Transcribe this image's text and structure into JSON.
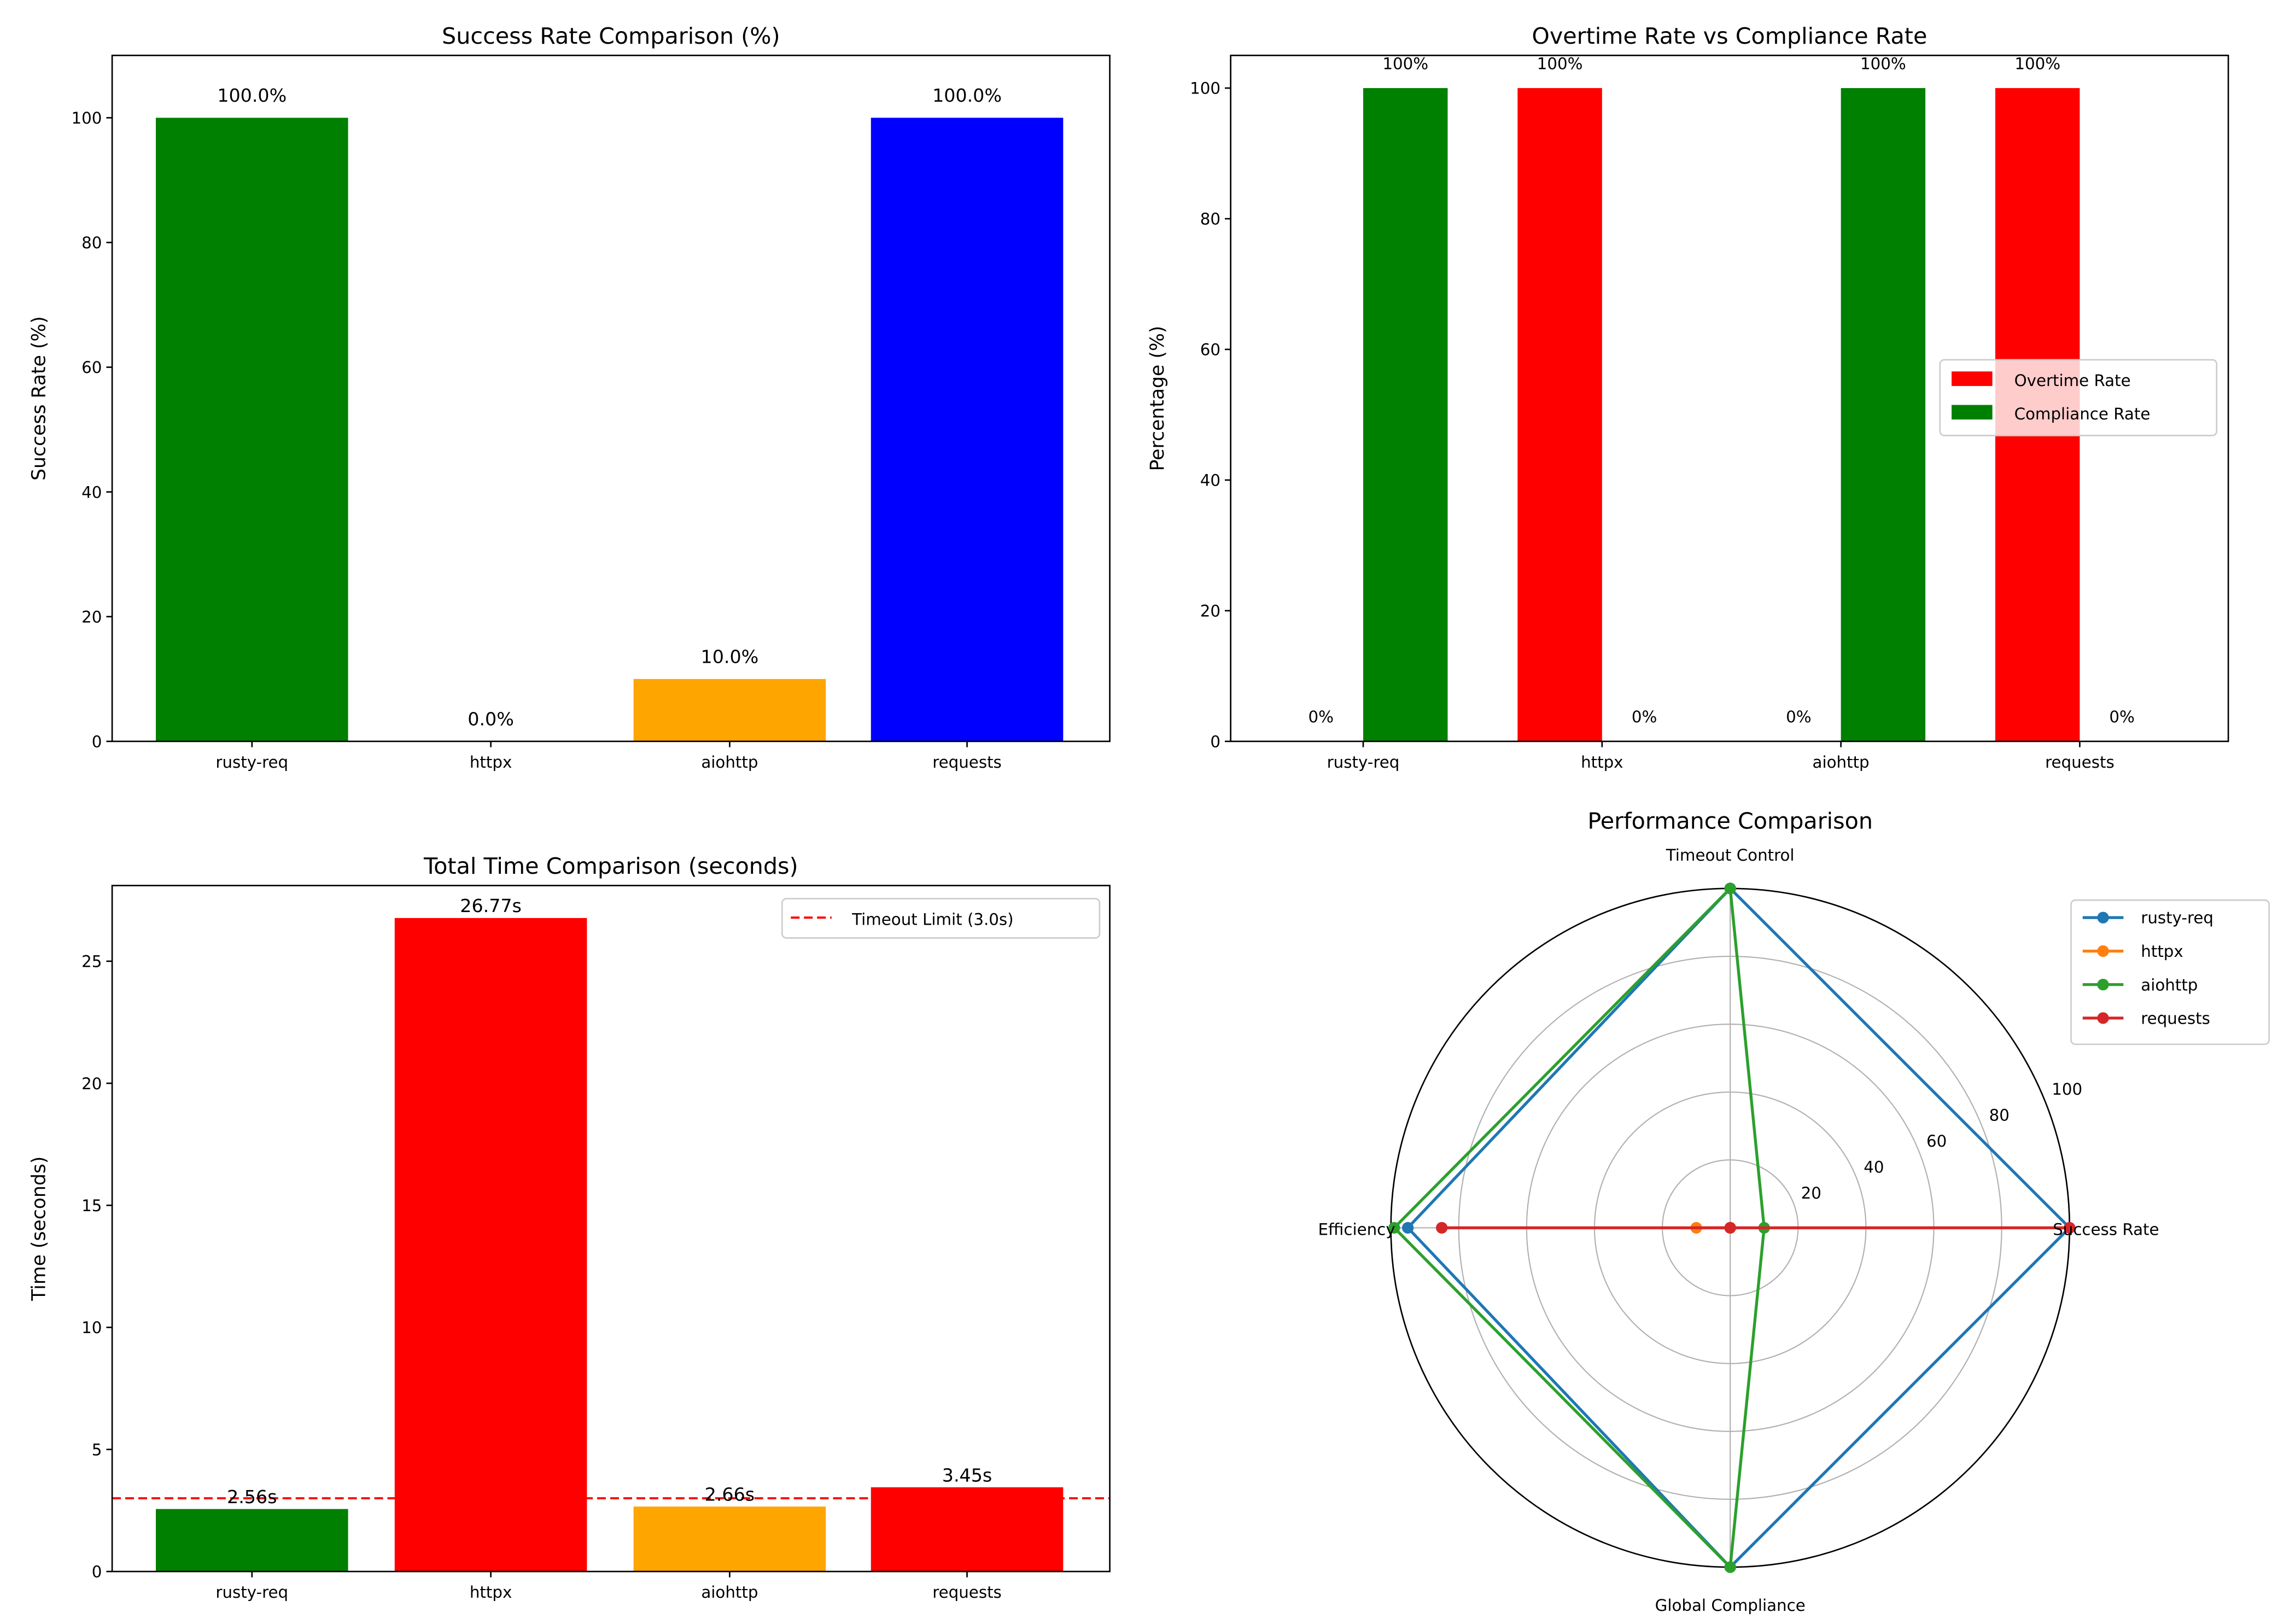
{
  "chart_data": [
    {
      "type": "bar",
      "title": "Success Rate Comparison (%)",
      "ylabel": "Success Rate (%)",
      "categories": [
        "rusty-req",
        "httpx",
        "aiohttp",
        "requests"
      ],
      "values": [
        100.0,
        0.0,
        10.0,
        100.0
      ],
      "data_labels": [
        "100.0%",
        "0.0%",
        "10.0%",
        "100.0%"
      ],
      "colors": [
        "#008000",
        "#ff0000",
        "#ffa500",
        "#0000ff"
      ],
      "ylim": [
        0,
        110
      ],
      "yticks": [
        0,
        20,
        40,
        60,
        80,
        100
      ],
      "grid": false
    },
    {
      "type": "bar",
      "title": "Overtime Rate vs Compliance Rate",
      "ylabel": "Percentage (%)",
      "categories": [
        "rusty-req",
        "httpx",
        "aiohttp",
        "requests"
      ],
      "series": [
        {
          "name": "Overtime Rate",
          "color": "#ff0000",
          "values": [
            0,
            100,
            0,
            100
          ],
          "data_labels": [
            "0%",
            "100%",
            "0%",
            "100%"
          ]
        },
        {
          "name": "Compliance Rate",
          "color": "#008000",
          "values": [
            100,
            0,
            100,
            0
          ],
          "data_labels": [
            "100%",
            "0%",
            "100%",
            "0%"
          ]
        }
      ],
      "ylim": [
        0,
        105
      ],
      "yticks": [
        0,
        20,
        40,
        60,
        80,
        100
      ],
      "legend": "center-right",
      "grid": false
    },
    {
      "type": "bar",
      "title": "Total Time Comparison (seconds)",
      "ylabel": "Time (seconds)",
      "categories": [
        "rusty-req",
        "httpx",
        "aiohttp",
        "requests"
      ],
      "values": [
        2.56,
        26.77,
        2.66,
        3.45
      ],
      "data_labels": [
        "2.56s",
        "26.77s",
        "2.66s",
        "3.45s"
      ],
      "colors": [
        "#008000",
        "#ff0000",
        "#ffa500",
        "#ff0000"
      ],
      "reference_line": {
        "value": 3.0,
        "label": "Timeout Limit (3.0s)",
        "color": "#ff0000",
        "style": "dashed"
      },
      "ylim": [
        0,
        28.1
      ],
      "yticks": [
        0,
        5,
        10,
        15,
        20,
        25
      ],
      "legend": "top-right",
      "grid": false
    },
    {
      "type": "radar",
      "title": "Performance Comparison",
      "axes": [
        "Success Rate",
        "Timeout Control",
        "Efficiency",
        "Global Compliance"
      ],
      "rticks": [
        20,
        40,
        60,
        80,
        100
      ],
      "rlim": [
        0,
        100
      ],
      "series": [
        {
          "name": "rusty-req",
          "color": "#1f77b4",
          "values": [
            100,
            100,
            95,
            100
          ]
        },
        {
          "name": "httpx",
          "color": "#ff7f0e",
          "values": [
            0,
            0,
            10,
            0
          ]
        },
        {
          "name": "aiohttp",
          "color": "#2ca02c",
          "values": [
            10,
            100,
            99,
            100
          ]
        },
        {
          "name": "requests",
          "color": "#d62728",
          "values": [
            100,
            0,
            85,
            0
          ]
        }
      ],
      "legend": "top-right",
      "grid": true
    }
  ]
}
